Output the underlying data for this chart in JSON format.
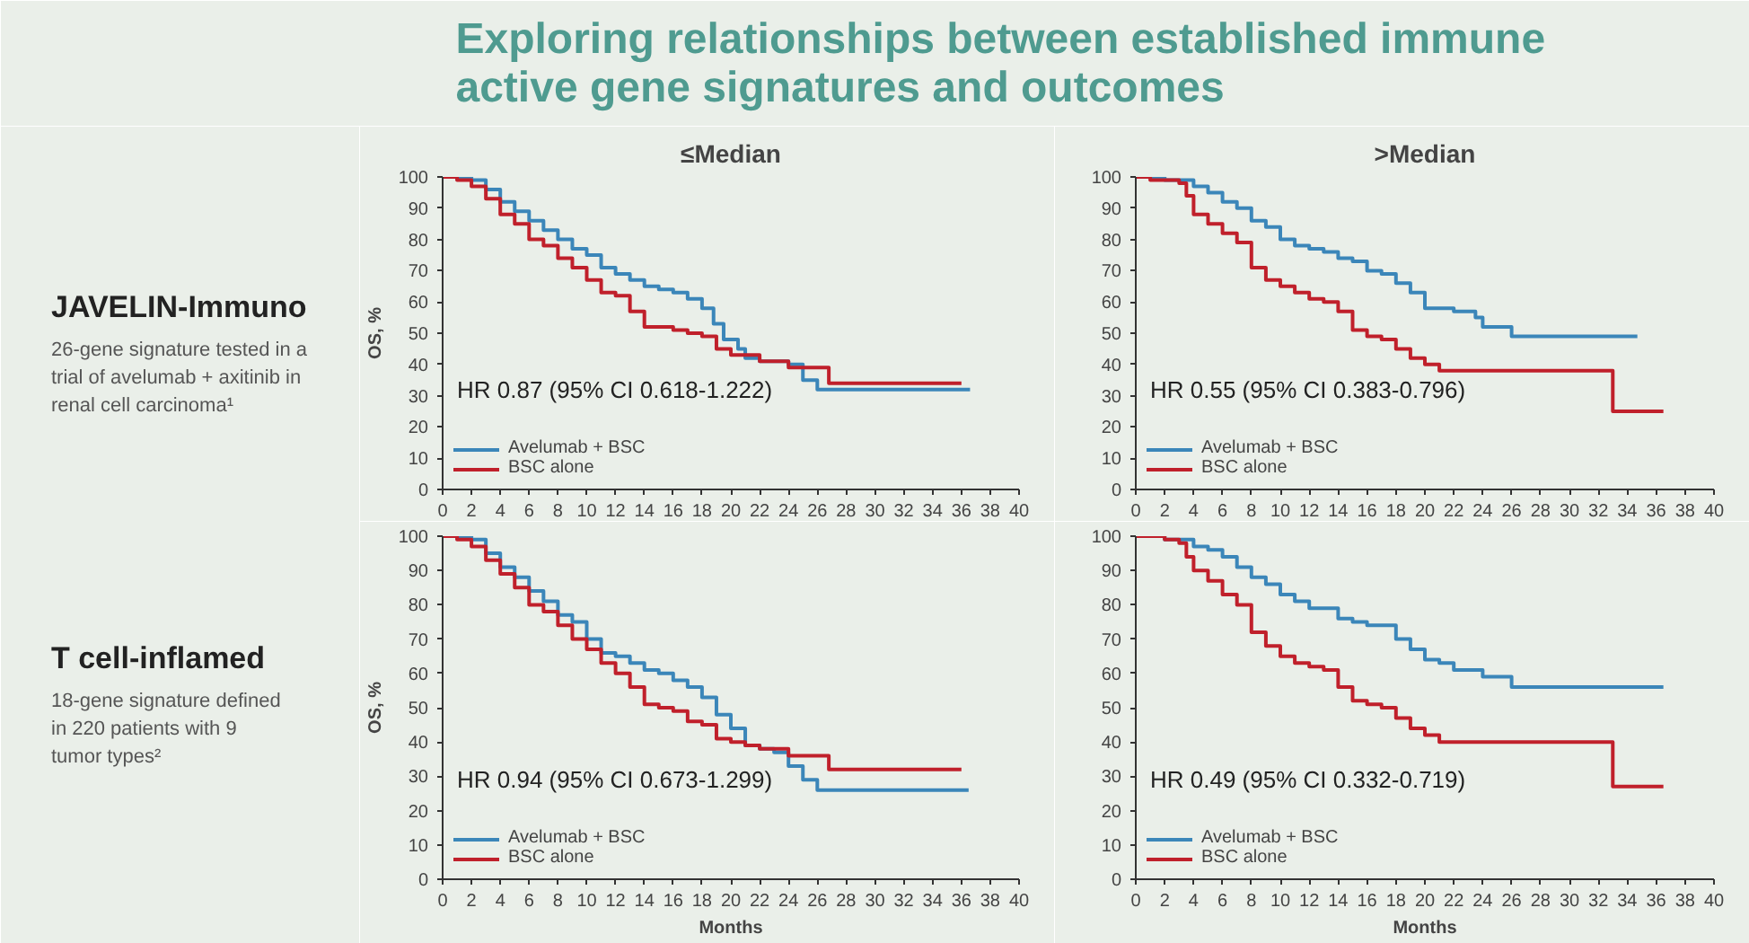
{
  "chart_data": [
    {
      "type": "other",
      "title": "Exploring relationships between established immune\nactive gene signatures and outcomes",
      "annotations": [
        "JAVELIN-Immuno",
        "26-gene signature tested in a\ntrial of avelumab + axitinib in\nrenal cell carcinoma¹",
        "T cell-inflamed",
        "18-gene signature defined\nin 220 patients with 9\ntumor types²"
      ]
    },
    {
      "type": "step",
      "title": "≤Median",
      "ylabel": "OS, %",
      "xlim": [
        0,
        40
      ],
      "xticks": [
        0,
        2,
        4,
        6,
        8,
        10,
        12,
        14,
        16,
        18,
        20,
        22,
        24,
        26,
        28,
        30,
        32,
        34,
        36,
        38,
        40
      ],
      "ylim": [
        0,
        100
      ],
      "yticks": [
        0,
        10,
        20,
        30,
        40,
        50,
        60,
        70,
        80,
        90,
        100
      ],
      "legend": "bottom left",
      "annotations": [
        "HR 0.87 (95% CI 0.618-1.222)"
      ],
      "series": [
        {
          "name": "Avelumab + BSC",
          "color": "#3b86b9",
          "x": [
            0,
            2,
            3,
            4,
            5,
            6,
            7,
            8,
            9,
            10,
            11,
            12,
            13,
            14,
            15,
            16,
            17,
            18,
            18.8,
            19.5,
            20.5,
            21,
            22,
            24,
            25,
            26,
            36.6
          ],
          "values": [
            100,
            99,
            96,
            92,
            89,
            86,
            83,
            80,
            77,
            75,
            71,
            69,
            67,
            65,
            64,
            63,
            61,
            58,
            53,
            48,
            45,
            42,
            41,
            40,
            35,
            32,
            32
          ]
        },
        {
          "name": "BSC alone",
          "color": "#c0202b",
          "x": [
            0,
            1,
            2,
            3,
            4,
            5,
            6,
            7,
            8,
            9,
            10,
            11,
            12,
            13,
            14,
            15,
            16,
            17,
            18,
            19,
            20,
            21,
            22,
            24,
            26,
            26.8,
            36
          ],
          "values": [
            100,
            99,
            97,
            93,
            88,
            85,
            80,
            78,
            74,
            71,
            67,
            63,
            62,
            57,
            52,
            52,
            51,
            50,
            49,
            45,
            43,
            43,
            41,
            39,
            39,
            34,
            34
          ]
        }
      ]
    },
    {
      "type": "step",
      "title": ">Median",
      "xlim": [
        0,
        40
      ],
      "xticks": [
        0,
        2,
        4,
        6,
        8,
        10,
        12,
        14,
        16,
        18,
        20,
        22,
        24,
        26,
        28,
        30,
        32,
        34,
        36,
        38,
        40
      ],
      "ylim": [
        0,
        100
      ],
      "yticks": [
        0,
        10,
        20,
        30,
        40,
        50,
        60,
        70,
        80,
        90,
        100
      ],
      "legend": "bottom left",
      "annotations": [
        "HR 0.55 (95% CI 0.383-0.796)"
      ],
      "series": [
        {
          "name": "Avelumab + BSC",
          "color": "#3b86b9",
          "x": [
            0,
            2,
            3,
            4,
            5,
            6,
            7,
            8,
            9,
            10,
            11,
            12,
            13,
            14,
            15,
            16,
            17,
            18,
            19,
            20,
            21,
            22,
            23.5,
            24,
            26,
            34.7
          ],
          "values": [
            100,
            99,
            99,
            97,
            95,
            92,
            90,
            86,
            84,
            80,
            78,
            77,
            76,
            74,
            73,
            70,
            69,
            66,
            63,
            58,
            58,
            57,
            55,
            52,
            49,
            49
          ]
        },
        {
          "name": "BSC alone",
          "color": "#c0202b",
          "x": [
            0,
            1,
            3,
            3.5,
            4,
            5,
            6,
            7,
            8,
            9,
            10,
            11,
            12,
            13,
            14,
            15,
            16,
            17,
            18,
            19,
            20,
            21,
            33,
            36.5
          ],
          "values": [
            100,
            99,
            98,
            94,
            88,
            85,
            82,
            79,
            71,
            67,
            65,
            63,
            61,
            60,
            57,
            51,
            49,
            48,
            45,
            42,
            40,
            38,
            25,
            25
          ]
        }
      ]
    },
    {
      "type": "step",
      "xlabel": "Months",
      "ylabel": "OS, %",
      "xlim": [
        0,
        40
      ],
      "xticks": [
        0,
        2,
        4,
        6,
        8,
        10,
        12,
        14,
        16,
        18,
        20,
        22,
        24,
        26,
        28,
        30,
        32,
        34,
        36,
        38,
        40
      ],
      "ylim": [
        0,
        100
      ],
      "yticks": [
        0,
        10,
        20,
        30,
        40,
        50,
        60,
        70,
        80,
        90,
        100
      ],
      "legend": "bottom left",
      "annotations": [
        "HR 0.94 (95% CI 0.673-1.299)"
      ],
      "series": [
        {
          "name": "Avelumab + BSC",
          "color": "#3b86b9",
          "x": [
            0,
            2,
            3,
            4,
            5,
            6,
            7,
            8,
            9,
            10,
            11,
            12,
            13,
            14,
            15,
            16,
            17,
            18,
            19,
            20,
            21,
            22,
            23,
            24,
            25,
            26,
            36.5
          ],
          "values": [
            100,
            99,
            95,
            91,
            88,
            84,
            81,
            77,
            75,
            70,
            66,
            65,
            63,
            61,
            60,
            58,
            56,
            53,
            48,
            44,
            39,
            38,
            37,
            33,
            29,
            26,
            26
          ]
        },
        {
          "name": "BSC alone",
          "color": "#c0202b",
          "x": [
            0,
            1,
            2,
            3,
            4,
            5,
            6,
            7,
            8,
            9,
            10,
            11,
            12,
            13,
            14,
            15,
            16,
            17,
            18,
            19,
            20,
            21,
            22,
            24,
            26.8,
            36
          ],
          "values": [
            100,
            99,
            97,
            93,
            89,
            85,
            80,
            78,
            74,
            70,
            67,
            63,
            60,
            56,
            51,
            50,
            49,
            46,
            45,
            41,
            40,
            39,
            38,
            36,
            32,
            32
          ]
        }
      ]
    },
    {
      "type": "step",
      "xlabel": "Months",
      "xlim": [
        0,
        40
      ],
      "xticks": [
        0,
        2,
        4,
        6,
        8,
        10,
        12,
        14,
        16,
        18,
        20,
        22,
        24,
        26,
        28,
        30,
        32,
        34,
        36,
        38,
        40
      ],
      "ylim": [
        0,
        100
      ],
      "yticks": [
        0,
        10,
        20,
        30,
        40,
        50,
        60,
        70,
        80,
        90,
        100
      ],
      "legend": "bottom left",
      "annotations": [
        "HR 0.49 (95% CI 0.332-0.719)"
      ],
      "series": [
        {
          "name": "Avelumab + BSC",
          "color": "#3b86b9",
          "x": [
            0,
            2,
            3,
            4,
            5,
            6,
            7,
            8,
            9,
            10,
            11,
            12,
            13,
            14,
            15,
            16,
            17,
            18,
            19,
            20,
            21,
            22,
            24,
            26,
            36.5
          ],
          "values": [
            100,
            99,
            99,
            97,
            96,
            94,
            91,
            88,
            86,
            83,
            81,
            79,
            79,
            76,
            75,
            74,
            74,
            70,
            67,
            64,
            63,
            61,
            59,
            56,
            56
          ]
        },
        {
          "name": "BSC alone",
          "color": "#c0202b",
          "x": [
            0,
            2,
            3,
            3.5,
            4,
            5,
            6,
            7,
            8,
            9,
            10,
            11,
            12,
            13,
            14,
            15,
            16,
            17,
            18,
            19,
            20,
            21,
            33,
            36.5
          ],
          "values": [
            100,
            99,
            98,
            94,
            90,
            87,
            83,
            80,
            72,
            68,
            65,
            63,
            62,
            61,
            56,
            52,
            51,
            50,
            47,
            44,
            42,
            40,
            27,
            27
          ]
        }
      ]
    }
  ]
}
